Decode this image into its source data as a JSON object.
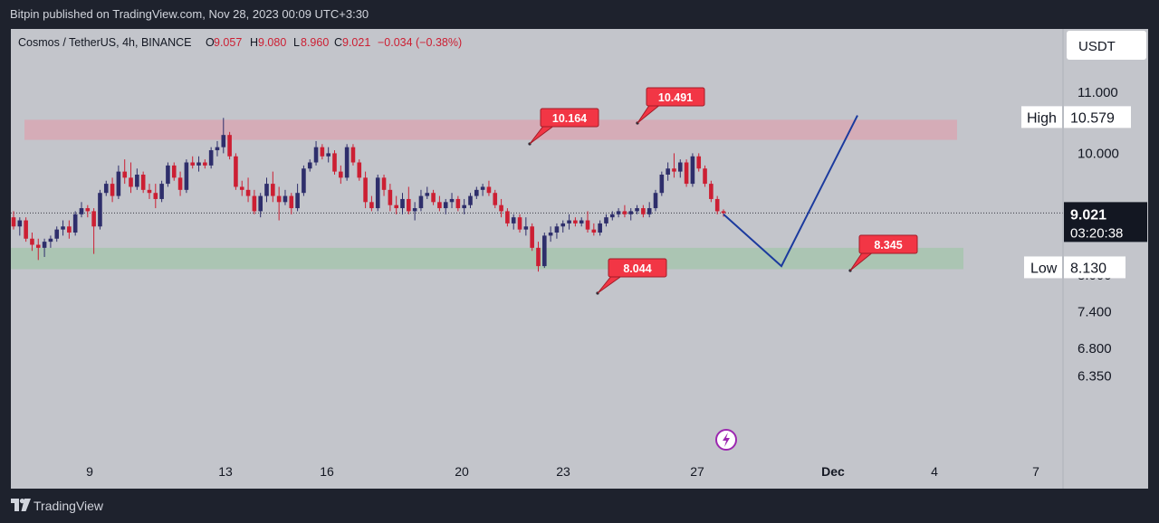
{
  "header": {
    "publish_line": "Bitpin published on TradingView.com, Nov 28, 2023 00:09 UTC+3:30"
  },
  "legend": {
    "symbol": "Cosmos / TetherUS, 4h, BINANCE",
    "o_label": "O",
    "o_value": "9.057",
    "h_label": "H",
    "h_value": "9.080",
    "l_label": "L",
    "l_value": "8.960",
    "c_label": "C",
    "c_value": "9.021",
    "change": "−0.034 (−0.38%)"
  },
  "currency_button": "USDT",
  "footer": {
    "brand": "TradingView"
  },
  "colors": {
    "up": "#2e2e6b",
    "down": "#cc1f33",
    "projection": "#1b3a9e",
    "resistance_zone": "#d7a8b5",
    "support_zone": "#a8c4b0",
    "callout": "#f23645",
    "panel_bg": "#c3c5cb",
    "page_bg": "#1e222d"
  },
  "icons": {
    "tv": "tradingview-logo-icon",
    "flash": "lightning-icon"
  },
  "chart_data": {
    "type": "candlestick",
    "symbol": "Cosmos / TetherUS",
    "interval": "4h",
    "exchange": "BINANCE",
    "ylim": [
      6.25,
      11.6
    ],
    "y_ticks": [
      "11.000",
      "10.000",
      "7.400",
      "6.800",
      "6.350"
    ],
    "x_ticks": [
      "9",
      "13",
      "16",
      "20",
      "23",
      "27",
      "Dec",
      "4",
      "7"
    ],
    "last_price": "9.021",
    "countdown": "03:20:38",
    "high_label": "High",
    "high_value": "10.579",
    "low_label": "Low",
    "low_value": "8.130",
    "hidden_tick": "8.000",
    "zones": [
      {
        "type": "resistance",
        "from": 10.22,
        "to": 10.55
      },
      {
        "type": "support",
        "from": 8.1,
        "to": 8.45
      }
    ],
    "callouts": [
      {
        "text": "10.164",
        "value": 10.164
      },
      {
        "text": "10.491",
        "value": 10.491
      },
      {
        "text": "8.044",
        "value": 8.044
      },
      {
        "text": "8.345",
        "value": 8.345
      }
    ],
    "projection_path": [
      {
        "x": "27",
        "y": 9.0
      },
      {
        "x": "Nov 30",
        "y": 8.15
      },
      {
        "x": "Dec 1",
        "y": 10.62
      }
    ],
    "candles": [
      [
        8.95,
        9.05,
        8.75,
        8.8
      ],
      [
        8.8,
        8.95,
        8.65,
        8.9
      ],
      [
        8.9,
        8.95,
        8.55,
        8.6
      ],
      [
        8.6,
        8.7,
        8.4,
        8.5
      ],
      [
        8.5,
        8.6,
        8.25,
        8.45
      ],
      [
        8.45,
        8.6,
        8.3,
        8.55
      ],
      [
        8.55,
        8.65,
        8.45,
        8.6
      ],
      [
        8.6,
        8.8,
        8.55,
        8.75
      ],
      [
        8.75,
        8.9,
        8.65,
        8.8
      ],
      [
        8.8,
        8.9,
        8.6,
        8.7
      ],
      [
        8.7,
        9.05,
        8.65,
        9.0
      ],
      [
        9.0,
        9.2,
        8.95,
        9.1
      ],
      [
        9.1,
        9.15,
        8.95,
        9.05
      ],
      [
        9.05,
        9.1,
        8.35,
        8.8
      ],
      [
        8.8,
        9.4,
        8.75,
        9.35
      ],
      [
        9.35,
        9.55,
        9.3,
        9.5
      ],
      [
        9.5,
        9.6,
        9.2,
        9.3
      ],
      [
        9.3,
        9.8,
        9.25,
        9.7
      ],
      [
        9.7,
        9.9,
        9.5,
        9.6
      ],
      [
        9.6,
        9.85,
        9.35,
        9.45
      ],
      [
        9.45,
        9.75,
        9.4,
        9.65
      ],
      [
        9.65,
        9.7,
        9.35,
        9.4
      ],
      [
        9.4,
        9.5,
        9.25,
        9.35
      ],
      [
        9.35,
        9.5,
        9.1,
        9.25
      ],
      [
        9.25,
        9.55,
        9.2,
        9.5
      ],
      [
        9.5,
        9.85,
        9.45,
        9.8
      ],
      [
        9.8,
        9.85,
        9.55,
        9.6
      ],
      [
        9.6,
        9.7,
        9.3,
        9.4
      ],
      [
        9.4,
        9.9,
        9.35,
        9.85
      ],
      [
        9.85,
        9.95,
        9.75,
        9.8
      ],
      [
        9.8,
        9.95,
        9.7,
        9.85
      ],
      [
        9.85,
        9.9,
        9.75,
        9.8
      ],
      [
        9.8,
        10.1,
        9.75,
        10.05
      ],
      [
        10.05,
        10.2,
        9.95,
        10.1
      ],
      [
        10.1,
        10.58,
        10.0,
        10.3
      ],
      [
        10.3,
        10.35,
        9.9,
        9.95
      ],
      [
        9.95,
        10.0,
        9.4,
        9.45
      ],
      [
        9.45,
        9.55,
        9.3,
        9.4
      ],
      [
        9.4,
        9.6,
        9.2,
        9.3
      ],
      [
        9.3,
        9.4,
        9.0,
        9.05
      ],
      [
        9.05,
        9.35,
        8.95,
        9.3
      ],
      [
        9.3,
        9.6,
        9.2,
        9.5
      ],
      [
        9.5,
        9.7,
        9.2,
        9.3
      ],
      [
        9.3,
        9.45,
        8.9,
        9.2
      ],
      [
        9.2,
        9.4,
        9.15,
        9.3
      ],
      [
        9.3,
        9.35,
        9.0,
        9.1
      ],
      [
        9.1,
        9.5,
        9.05,
        9.35
      ],
      [
        9.35,
        9.8,
        9.3,
        9.75
      ],
      [
        9.75,
        9.9,
        9.7,
        9.85
      ],
      [
        9.85,
        10.2,
        9.8,
        10.1
      ],
      [
        10.1,
        10.15,
        9.9,
        9.95
      ],
      [
        9.95,
        10.1,
        9.85,
        10.0
      ],
      [
        10.0,
        10.05,
        9.65,
        9.7
      ],
      [
        9.7,
        9.8,
        9.5,
        9.6
      ],
      [
        9.6,
        10.15,
        9.55,
        10.1
      ],
      [
        10.1,
        10.15,
        9.8,
        9.85
      ],
      [
        9.85,
        9.9,
        9.55,
        9.6
      ],
      [
        9.6,
        9.7,
        9.1,
        9.2
      ],
      [
        9.2,
        9.3,
        9.05,
        9.1
      ],
      [
        9.1,
        9.65,
        9.05,
        9.6
      ],
      [
        9.6,
        9.65,
        9.3,
        9.4
      ],
      [
        9.4,
        9.5,
        9.05,
        9.15
      ],
      [
        9.15,
        9.3,
        9.0,
        9.1
      ],
      [
        9.1,
        9.35,
        9.0,
        9.25
      ],
      [
        9.25,
        9.45,
        9.0,
        9.05
      ],
      [
        9.05,
        9.2,
        8.9,
        9.1
      ],
      [
        9.1,
        9.4,
        9.05,
        9.3
      ],
      [
        9.3,
        9.45,
        9.25,
        9.35
      ],
      [
        9.35,
        9.4,
        9.15,
        9.2
      ],
      [
        9.2,
        9.3,
        9.05,
        9.1
      ],
      [
        9.1,
        9.25,
        9.0,
        9.2
      ],
      [
        9.2,
        9.35,
        9.1,
        9.25
      ],
      [
        9.25,
        9.3,
        9.05,
        9.1
      ],
      [
        9.1,
        9.25,
        9.0,
        9.15
      ],
      [
        9.15,
        9.35,
        9.1,
        9.3
      ],
      [
        9.3,
        9.45,
        9.25,
        9.4
      ],
      [
        9.4,
        9.5,
        9.3,
        9.45
      ],
      [
        9.45,
        9.55,
        9.3,
        9.35
      ],
      [
        9.35,
        9.4,
        9.1,
        9.15
      ],
      [
        9.15,
        9.25,
        8.95,
        9.05
      ],
      [
        9.05,
        9.1,
        8.8,
        8.85
      ],
      [
        8.85,
        9.0,
        8.75,
        8.95
      ],
      [
        8.95,
        9.0,
        8.7,
        8.75
      ],
      [
        8.75,
        8.95,
        8.65,
        8.8
      ],
      [
        8.8,
        8.85,
        8.4,
        8.45
      ],
      [
        8.45,
        8.55,
        8.06,
        8.15
      ],
      [
        8.15,
        8.7,
        8.12,
        8.65
      ],
      [
        8.65,
        8.8,
        8.55,
        8.7
      ],
      [
        8.7,
        8.85,
        8.6,
        8.8
      ],
      [
        8.8,
        8.9,
        8.7,
        8.85
      ],
      [
        8.85,
        9.0,
        8.75,
        8.9
      ],
      [
        8.9,
        8.95,
        8.8,
        8.85
      ],
      [
        8.85,
        8.95,
        8.8,
        8.9
      ],
      [
        8.9,
        9.05,
        8.7,
        8.75
      ],
      [
        8.75,
        8.85,
        8.65,
        8.7
      ],
      [
        8.7,
        8.9,
        8.65,
        8.85
      ],
      [
        8.85,
        9.0,
        8.8,
        8.95
      ],
      [
        8.95,
        9.05,
        8.9,
        9.0
      ],
      [
        9.0,
        9.1,
        8.95,
        9.05
      ],
      [
        9.05,
        9.15,
        8.95,
        9.0
      ],
      [
        9.0,
        9.1,
        8.9,
        9.05
      ],
      [
        9.05,
        9.15,
        9.0,
        9.1
      ],
      [
        9.1,
        9.15,
        8.95,
        9.0
      ],
      [
        9.0,
        9.2,
        8.95,
        9.1
      ],
      [
        9.1,
        9.4,
        9.05,
        9.35
      ],
      [
        9.35,
        9.7,
        9.3,
        9.65
      ],
      [
        9.65,
        9.85,
        9.55,
        9.75
      ],
      [
        9.75,
        10.0,
        9.6,
        9.7
      ],
      [
        9.7,
        9.9,
        9.6,
        9.85
      ],
      [
        9.85,
        9.9,
        9.45,
        9.5
      ],
      [
        9.5,
        10.0,
        9.45,
        9.95
      ],
      [
        9.95,
        10.0,
        9.7,
        9.75
      ],
      [
        9.75,
        9.8,
        9.45,
        9.5
      ],
      [
        9.5,
        9.55,
        9.2,
        9.25
      ],
      [
        9.25,
        9.3,
        9.0,
        9.05
      ],
      [
        9.05,
        9.08,
        8.96,
        9.02
      ]
    ]
  }
}
